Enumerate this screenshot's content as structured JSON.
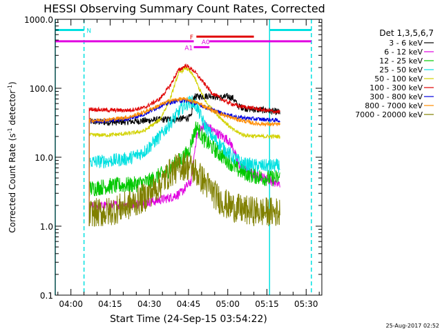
{
  "chart_data": {
    "type": "line",
    "title": "HESSI Observing Summary Count Rates, Corrected",
    "xlabel": "Start Time (24-Sep-15 03:54:22)",
    "ylabel_main": "Corrected Count Rate (s",
    "ylabel_sup1": "-1",
    "ylabel_mid": " detector",
    "ylabel_sup2": "-1",
    "ylabel_end": ")",
    "yscale": "log",
    "ylim": [
      0.1,
      1000
    ],
    "xlim_minutes_after_0354": [
      0,
      102
    ],
    "y_tick_labels": [
      "0.1",
      "1.0",
      "10.0",
      "100.0",
      "1000.0"
    ],
    "y_ticks": [
      0.1,
      1,
      10,
      100,
      1000
    ],
    "x_tick_labels": [
      "04:00",
      "04:15",
      "04:30",
      "04:45",
      "05:00",
      "05:15",
      "05:30"
    ],
    "x_ticks_min": [
      6,
      21,
      36,
      51,
      66,
      81,
      96
    ],
    "legend_title": "Det 1,3,5,6,7",
    "legend_placement": "right",
    "timestamp": "25-Aug-2017 02:52",
    "time_markers": [
      {
        "t": 0,
        "color": "#00e0e0",
        "style": "solid"
      },
      {
        "t": 11,
        "color": "#00e0e0",
        "style": "dashed"
      },
      {
        "t": 82,
        "color": "#00e0e0",
        "style": "solid"
      },
      {
        "t": 98,
        "color": "#00e0e0",
        "style": "dashed"
      }
    ],
    "bars": [
      {
        "label": "N",
        "color": "#00e0e0",
        "y": 700,
        "segments": [
          [
            0,
            11
          ],
          [
            82,
            98
          ]
        ],
        "label_t": 12
      },
      {
        "label": "F",
        "color": "#e00000",
        "y": 560,
        "segments": [
          [
            54,
            76
          ]
        ],
        "label_t": 51.5
      },
      {
        "label": "A0",
        "color": "#e000e0",
        "y": 480,
        "segments": [
          [
            0,
            53
          ],
          [
            59,
            98
          ]
        ],
        "label_t": 56
      },
      {
        "label": "A1",
        "color": "#e000e0",
        "y": 395,
        "segments": [
          [
            53,
            59
          ]
        ],
        "label_t": 49.5
      }
    ],
    "series": [
      {
        "name": "3 - 6 keV",
        "color": "#000000",
        "noise": 0.05,
        "points": [
          [
            13,
            33
          ],
          [
            20,
            32
          ],
          [
            30,
            33
          ],
          [
            40,
            35
          ],
          [
            48,
            36
          ],
          [
            52,
            38
          ],
          [
            53,
            75
          ],
          [
            60,
            78
          ],
          [
            63,
            73
          ],
          [
            66,
            76
          ],
          [
            68,
            72
          ],
          [
            70,
            55
          ],
          [
            74,
            50
          ],
          [
            80,
            48
          ],
          [
            86,
            45
          ]
        ]
      },
      {
        "name": "6 - 12 keV",
        "color": "#e000e0",
        "noise": 0.07,
        "points": [
          [
            13,
            1.9
          ],
          [
            20,
            2.0
          ],
          [
            30,
            2.1
          ],
          [
            38,
            2.3
          ],
          [
            44,
            2.6
          ],
          [
            48,
            3.0
          ],
          [
            52,
            4.5
          ],
          [
            54,
            20
          ],
          [
            57,
            30
          ],
          [
            60,
            25
          ],
          [
            63,
            21
          ],
          [
            66,
            18
          ],
          [
            68,
            14
          ],
          [
            70,
            8
          ],
          [
            74,
            6
          ],
          [
            80,
            5
          ],
          [
            86,
            4
          ]
        ]
      },
      {
        "name": "12 - 25 keV",
        "color": "#00c800",
        "noise": 0.12,
        "points": [
          [
            13,
            3.5
          ],
          [
            20,
            3.8
          ],
          [
            30,
            4.0
          ],
          [
            36,
            4.5
          ],
          [
            42,
            6.0
          ],
          [
            47,
            8.5
          ],
          [
            51,
            12
          ],
          [
            54,
            28
          ],
          [
            57,
            18
          ],
          [
            60,
            14
          ],
          [
            63,
            11
          ],
          [
            66,
            9
          ],
          [
            70,
            6.5
          ],
          [
            75,
            5.5
          ],
          [
            80,
            5.0
          ],
          [
            86,
            5.0
          ]
        ]
      },
      {
        "name": "25 - 50 keV",
        "color": "#00e0e0",
        "noise": 0.1,
        "points": [
          [
            13,
            8.5
          ],
          [
            20,
            8.8
          ],
          [
            28,
            9.5
          ],
          [
            34,
            12
          ],
          [
            40,
            20
          ],
          [
            45,
            35
          ],
          [
            49,
            55
          ],
          [
            52,
            65
          ],
          [
            54,
            55
          ],
          [
            57,
            30
          ],
          [
            60,
            20
          ],
          [
            64,
            14
          ],
          [
            68,
            10
          ],
          [
            72,
            8
          ],
          [
            78,
            7.5
          ],
          [
            86,
            7.5
          ]
        ]
      },
      {
        "name": "50 - 100 keV",
        "color": "#d2d200",
        "noise": 0.03,
        "points": [
          [
            13,
            21
          ],
          [
            20,
            21
          ],
          [
            28,
            22
          ],
          [
            34,
            24
          ],
          [
            40,
            35
          ],
          [
            44,
            70
          ],
          [
            47,
            160
          ],
          [
            50,
            200
          ],
          [
            53,
            150
          ],
          [
            55,
            100
          ],
          [
            58,
            60
          ],
          [
            63,
            38
          ],
          [
            68,
            25
          ],
          [
            72,
            21
          ],
          [
            78,
            20
          ],
          [
            86,
            20
          ]
        ]
      },
      {
        "name": "100 - 300 keV",
        "color": "#e00000",
        "noise": 0.03,
        "points": [
          [
            13,
            50
          ],
          [
            20,
            48
          ],
          [
            28,
            48
          ],
          [
            34,
            52
          ],
          [
            40,
            70
          ],
          [
            44,
            110
          ],
          [
            47,
            180
          ],
          [
            50,
            215
          ],
          [
            53,
            180
          ],
          [
            56,
            130
          ],
          [
            60,
            85
          ],
          [
            65,
            65
          ],
          [
            70,
            55
          ],
          [
            75,
            52
          ],
          [
            80,
            48
          ],
          [
            86,
            45
          ]
        ]
      },
      {
        "name": "300 - 800 keV",
        "color": "#0000e0",
        "noise": 0.03,
        "points": [
          [
            13,
            33
          ],
          [
            20,
            34
          ],
          [
            28,
            36
          ],
          [
            34,
            42
          ],
          [
            40,
            55
          ],
          [
            44,
            62
          ],
          [
            47,
            66
          ],
          [
            50,
            66
          ],
          [
            54,
            60
          ],
          [
            58,
            52
          ],
          [
            64,
            43
          ],
          [
            70,
            38
          ],
          [
            76,
            36
          ],
          [
            82,
            35
          ],
          [
            86,
            34
          ]
        ]
      },
      {
        "name": "800 - 7000 keV",
        "color": "#ff8c00",
        "noise": 0.03,
        "points": [
          [
            13,
            34
          ],
          [
            20,
            35
          ],
          [
            28,
            38
          ],
          [
            34,
            45
          ],
          [
            40,
            57
          ],
          [
            44,
            66
          ],
          [
            48,
            70
          ],
          [
            51,
            68
          ],
          [
            55,
            60
          ],
          [
            60,
            48
          ],
          [
            65,
            40
          ],
          [
            70,
            35
          ],
          [
            76,
            31
          ],
          [
            82,
            30
          ],
          [
            86,
            30
          ]
        ]
      },
      {
        "name": "7000 - 20000 keV",
        "color": "#808000",
        "noise": 0.22,
        "points": [
          [
            13,
            1.5
          ],
          [
            20,
            1.6
          ],
          [
            28,
            2.0
          ],
          [
            34,
            2.6
          ],
          [
            40,
            4.0
          ],
          [
            44,
            6.0
          ],
          [
            48,
            7.5
          ],
          [
            51,
            7.5
          ],
          [
            54,
            6.0
          ],
          [
            58,
            4.0
          ],
          [
            62,
            2.6
          ],
          [
            66,
            2.0
          ],
          [
            72,
            1.7
          ],
          [
            80,
            1.6
          ],
          [
            86,
            1.6
          ]
        ]
      }
    ]
  }
}
